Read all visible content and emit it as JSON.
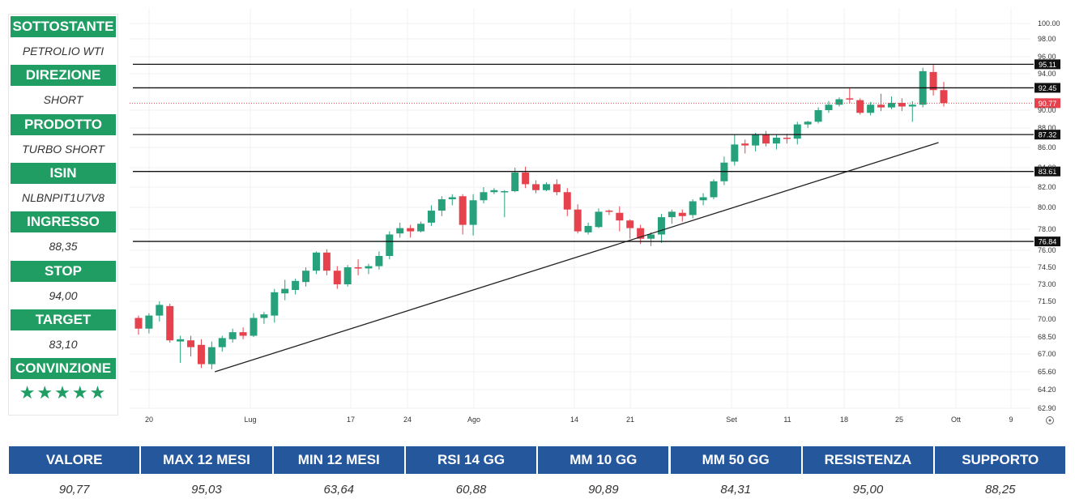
{
  "trade_panel": [
    {
      "label": "SOTTOSTANTE",
      "value": "PETROLIO WTI"
    },
    {
      "label": "DIREZIONE",
      "value": "SHORT"
    },
    {
      "label": "PRODOTTO",
      "value": "TURBO SHORT"
    },
    {
      "label": "ISIN",
      "value": "NLBNPIT1U7V8"
    },
    {
      "label": "INGRESSO",
      "value": "88,35"
    },
    {
      "label": "STOP",
      "value": "94,00"
    },
    {
      "label": "TARGET",
      "value": "83,10"
    },
    {
      "label": "CONVINZIONE",
      "value": "★★★★★",
      "rating": 5
    }
  ],
  "stats": [
    {
      "label": "VALORE",
      "value": "90,77"
    },
    {
      "label": "MAX 12 MESI",
      "value": "95,03"
    },
    {
      "label": "MIN 12 MESI",
      "value": "63,64"
    },
    {
      "label": "RSI 14 GG",
      "value": "60,88"
    },
    {
      "label": "MM 10 GG",
      "value": "90,89"
    },
    {
      "label": "MM 50 GG",
      "value": "84,31"
    },
    {
      "label": "RESISTENZA",
      "value": "95,00"
    },
    {
      "label": "SUPPORTO",
      "value": "88,25"
    }
  ],
  "colors": {
    "up": "#26a17b",
    "down": "#e5424d",
    "header_green": "#1f9d62",
    "header_blue": "#25579c",
    "price_line": "#e5424d"
  },
  "chart_data": {
    "type": "candlestick",
    "x_tick_labels": [
      "20",
      "Lug",
      "17",
      "24",
      "Ago",
      "14",
      "21",
      "Set",
      "11",
      "18",
      "25",
      "Ott",
      "9"
    ],
    "y_tick_labels": [
      "100.00",
      "98.00",
      "96.00",
      "94.00",
      "90.00",
      "88.00",
      "86.00",
      "84.00",
      "82.00",
      "80.00",
      "78.00",
      "76.00",
      "74.50",
      "73.00",
      "71.50",
      "70.00",
      "68.50",
      "67.00",
      "65.60",
      "64.20",
      "62.90"
    ],
    "ylim": [
      62.9,
      100.0
    ],
    "levels": [
      "95.11",
      "92.45",
      "87.32",
      "83.61",
      "76.84"
    ],
    "current_price": "90.77",
    "trendline": [
      [
        67.3,
        65.6
      ],
      [
        88.35,
        86.5
      ]
    ],
    "candles": [
      [
        70.1,
        69.2,
        70.3,
        68.7
      ],
      [
        69.2,
        70.3,
        70.5,
        68.8
      ],
      [
        70.3,
        71.2,
        71.5,
        69.8
      ],
      [
        71.1,
        68.2,
        71.3,
        68.0
      ],
      [
        68.1,
        68.3,
        68.6,
        66.3
      ],
      [
        68.2,
        67.6,
        68.6,
        66.8
      ],
      [
        67.8,
        66.2,
        68.3,
        65.9
      ],
      [
        66.2,
        67.6,
        68.1,
        65.8
      ],
      [
        67.6,
        68.4,
        68.6,
        67.2
      ],
      [
        68.3,
        68.9,
        69.2,
        68.0
      ],
      [
        68.9,
        68.6,
        69.3,
        68.3
      ],
      [
        68.6,
        70.1,
        70.5,
        68.5
      ],
      [
        70.1,
        70.4,
        70.6,
        69.6
      ],
      [
        70.3,
        72.3,
        72.6,
        69.7
      ],
      [
        72.2,
        72.6,
        73.4,
        71.6
      ],
      [
        72.5,
        73.3,
        73.5,
        72.1
      ],
      [
        73.2,
        74.2,
        74.5,
        72.8
      ],
      [
        74.2,
        75.8,
        75.9,
        73.9
      ],
      [
        75.8,
        74.2,
        76.1,
        73.8
      ],
      [
        74.2,
        73.0,
        74.6,
        72.6
      ],
      [
        73.0,
        74.5,
        74.7,
        72.8
      ],
      [
        74.5,
        74.4,
        75.2,
        73.8
      ],
      [
        74.4,
        74.6,
        74.8,
        73.9
      ],
      [
        74.6,
        75.5,
        75.9,
        74.3
      ],
      [
        75.5,
        77.5,
        77.8,
        75.2
      ],
      [
        77.6,
        78.1,
        78.6,
        77.2
      ],
      [
        78.1,
        77.8,
        78.4,
        77.2
      ],
      [
        77.8,
        78.5,
        78.7,
        77.7
      ],
      [
        78.6,
        79.7,
        80.2,
        78.3
      ],
      [
        79.7,
        80.8,
        81.1,
        79.2
      ],
      [
        80.8,
        81.0,
        81.3,
        80.2
      ],
      [
        81.1,
        78.4,
        81.3,
        77.5
      ],
      [
        78.4,
        80.7,
        81.3,
        77.4
      ],
      [
        80.7,
        81.5,
        82.0,
        80.4
      ],
      [
        81.5,
        81.7,
        81.9,
        81.3
      ],
      [
        81.6,
        81.6,
        81.7,
        79.1
      ],
      [
        81.6,
        83.5,
        84.0,
        81.5
      ],
      [
        83.5,
        82.3,
        84.1,
        81.9
      ],
      [
        82.3,
        81.7,
        82.7,
        81.4
      ],
      [
        81.7,
        82.3,
        82.5,
        81.6
      ],
      [
        82.3,
        81.5,
        82.8,
        81.2
      ],
      [
        81.5,
        79.8,
        81.9,
        79.2
      ],
      [
        79.8,
        77.8,
        80.3,
        77.6
      ],
      [
        77.7,
        78.3,
        78.6,
        77.5
      ],
      [
        78.2,
        79.6,
        79.9,
        78.1
      ],
      [
        79.7,
        79.6,
        79.8,
        79.3
      ],
      [
        79.5,
        78.8,
        80.1,
        77.8
      ],
      [
        78.8,
        78.1,
        78.9,
        77.1
      ],
      [
        78.1,
        77.1,
        78.4,
        76.6
      ],
      [
        77.1,
        77.5,
        77.7,
        76.4
      ],
      [
        77.5,
        79.1,
        79.4,
        76.7
      ],
      [
        79.1,
        79.6,
        79.8,
        78.5
      ],
      [
        79.5,
        79.2,
        79.8,
        78.7
      ],
      [
        79.3,
        80.6,
        80.8,
        79.0
      ],
      [
        80.7,
        81.0,
        81.4,
        80.2
      ],
      [
        81.0,
        82.6,
        82.8,
        80.8
      ],
      [
        82.6,
        84.5,
        85.1,
        82.2
      ],
      [
        84.6,
        86.3,
        87.3,
        84.2
      ],
      [
        86.4,
        86.2,
        86.8,
        85.4
      ],
      [
        86.2,
        87.3,
        87.5,
        85.6
      ],
      [
        87.3,
        86.4,
        87.7,
        86.1
      ],
      [
        86.4,
        87.0,
        87.3,
        85.8
      ],
      [
        87.0,
        86.9,
        87.4,
        86.4
      ],
      [
        86.9,
        88.4,
        88.7,
        86.3
      ],
      [
        88.4,
        88.7,
        88.8,
        88.0
      ],
      [
        88.7,
        90.0,
        90.3,
        88.5
      ],
      [
        90.0,
        90.6,
        91.0,
        89.7
      ],
      [
        90.6,
        91.2,
        91.4,
        90.4
      ],
      [
        91.3,
        91.2,
        92.5,
        90.8
      ],
      [
        91.1,
        89.7,
        91.3,
        89.5
      ],
      [
        89.7,
        90.6,
        90.9,
        89.4
      ],
      [
        90.6,
        90.3,
        91.8,
        89.9
      ],
      [
        90.3,
        90.8,
        91.5,
        90.1
      ],
      [
        90.8,
        90.4,
        91.3,
        89.9
      ],
      [
        90.4,
        90.6,
        91.0,
        88.7
      ],
      [
        90.6,
        94.3,
        94.7,
        90.3
      ],
      [
        94.2,
        92.2,
        95.03,
        91.6
      ],
      [
        92.2,
        90.77,
        93.1,
        90.4
      ]
    ]
  }
}
